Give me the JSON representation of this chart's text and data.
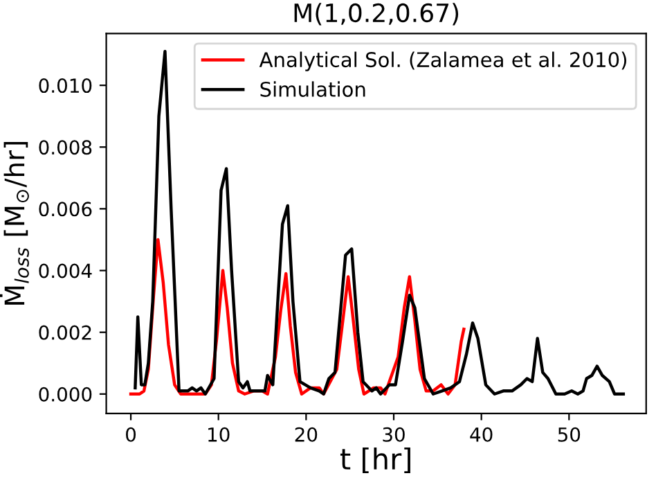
{
  "chart_data": {
    "type": "line",
    "title": "M(1,0.2,0.67)",
    "xlabel": "t [hr]",
    "ylabel": "Ṁ$_{loss}$ [M$_{⊙}$/hr]",
    "xlim": [
      -2.8,
      58.8
    ],
    "ylim": [
      -0.00063,
      0.01168
    ],
    "xticks": [
      0,
      10,
      20,
      30,
      40,
      50
    ],
    "yticks": [
      {
        "value": 0,
        "label": "0.000"
      },
      {
        "value": 0.002,
        "label": "0.002"
      },
      {
        "value": 0.004,
        "label": "0.004"
      },
      {
        "value": 0.006,
        "label": "0.006"
      },
      {
        "value": 0.008,
        "label": "0.008"
      },
      {
        "value": 0.01,
        "label": "0.010"
      }
    ],
    "grid": false,
    "legend": "top right",
    "marker": "none",
    "line_style": "solid",
    "series": [
      {
        "name": "Analytical Sol. (Zalamea et al. 2010)",
        "color": "#ff0000",
        "x": [
          0,
          1,
          1.5,
          2,
          2.6,
          3.1,
          3.7,
          4.3,
          5,
          5.7,
          8.5,
          9.2,
          9.8,
          10.5,
          11,
          11.6,
          12.3,
          13,
          14,
          15,
          15.6,
          16.5,
          17.1,
          17.7,
          18.2,
          18.8,
          19.5,
          20.5,
          21.5,
          22,
          23.5,
          24.2,
          24.8,
          25.3,
          26,
          26.6,
          27.7,
          28.5,
          29,
          30.5,
          31.2,
          31.8,
          32.4,
          33,
          33.7,
          34.5,
          35.4,
          36.2,
          37,
          37.7,
          38
        ],
        "values": [
          0,
          0,
          0.0001,
          0.0008,
          0.0032,
          0.005,
          0.0036,
          0.0016,
          0.0003,
          0,
          0,
          0.0003,
          0.0018,
          0.004,
          0.0028,
          0.001,
          0.0001,
          0,
          0.0001,
          0.0001,
          0,
          0.0012,
          0.0027,
          0.0039,
          0.0022,
          0.0007,
          0,
          0.0002,
          0.0002,
          0,
          0.0008,
          0.0024,
          0.0038,
          0.0026,
          0.0008,
          0,
          0.0002,
          0.0002,
          0,
          0.0012,
          0.0028,
          0.0038,
          0.0024,
          0.0008,
          0.0001,
          0.0001,
          0.0003,
          0,
          0.0003,
          0.0017,
          0.0021
        ]
      },
      {
        "name": "Simulation",
        "color": "#000000",
        "x": [
          0.5,
          0.8,
          1.2,
          1.6,
          2.0,
          2.5,
          3.2,
          3.9,
          4.6,
          5.5,
          6.5,
          7,
          7.5,
          8,
          8.5,
          9.5,
          10.3,
          10.9,
          11.5,
          12.3,
          12.8,
          13.3,
          13.6,
          14.5,
          15.3,
          15.6,
          16.2,
          17.3,
          17.9,
          18.5,
          19.3,
          20.5,
          21.5,
          22,
          22.6,
          23.3,
          24.5,
          25.2,
          25.9,
          26.5,
          27.5,
          28,
          28.5,
          29.5,
          30.2,
          31,
          31.8,
          32.4,
          33.5,
          34.5,
          35.5,
          36.5,
          37.5,
          38.3,
          39,
          39.6,
          40.5,
          41.5,
          42.5,
          43.5,
          44.5,
          45.2,
          45.8,
          46.4,
          47,
          47.6,
          48.5,
          49.5,
          50.3,
          51,
          51.6,
          52,
          52.6,
          53.2,
          53.8,
          54.6,
          55.2,
          56.2
        ],
        "values": [
          0.0002,
          0.0025,
          0.0003,
          0.0003,
          0.001,
          0.003,
          0.009,
          0.0111,
          0.006,
          0.0001,
          0.0001,
          0.0002,
          0.0001,
          0.0002,
          0,
          0.0005,
          0.0066,
          0.0073,
          0.004,
          0.0004,
          0.0002,
          0.0004,
          0.0001,
          0.0001,
          0.0001,
          0.0006,
          0.0003,
          0.0055,
          0.0061,
          0.003,
          0.0004,
          0.0002,
          0.0001,
          0,
          0.0005,
          0.0007,
          0.0045,
          0.0047,
          0.002,
          0.0004,
          0.0001,
          0.0002,
          0,
          0.0003,
          0.0003,
          0.0017,
          0.0032,
          0.0028,
          0.0005,
          0,
          0.0001,
          0.0002,
          0.0004,
          0.0013,
          0.0023,
          0.0018,
          0.0003,
          0,
          0.0001,
          0.0001,
          0.0003,
          0.0005,
          0.0004,
          0.0018,
          0.0007,
          0.0005,
          0,
          0,
          0.0001,
          0,
          0.0001,
          0.0005,
          0.0006,
          0.0009,
          0.0006,
          0.0004,
          0,
          0
        ]
      }
    ]
  }
}
